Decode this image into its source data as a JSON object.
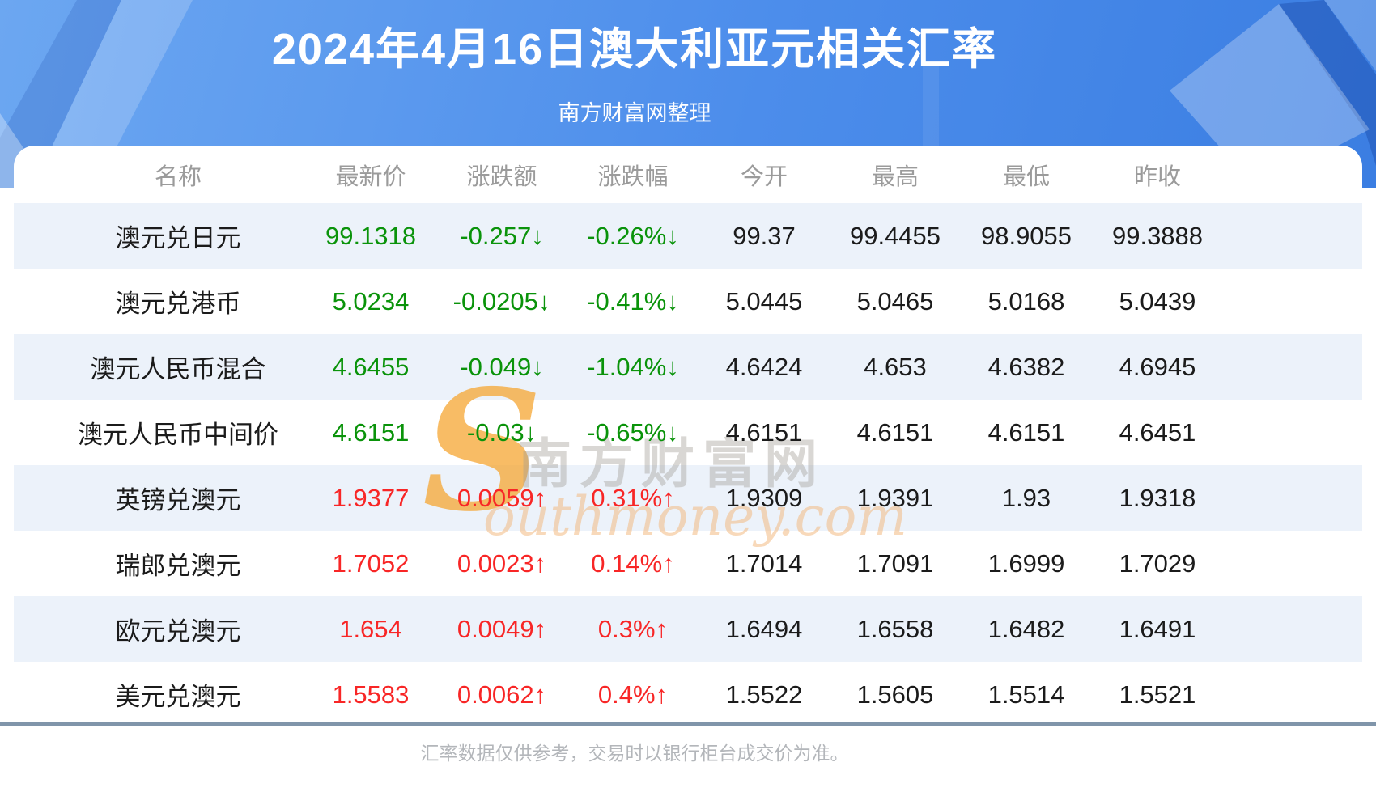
{
  "hero": {
    "title": "2024年4月16日澳大利亚元相关汇率",
    "subtitle": "南方财富网整理"
  },
  "watermark": {
    "initial": "S",
    "script": "outhmoney.com",
    "cn": "南方财富网"
  },
  "footer": {
    "note": "汇率数据仅供参考，交易时以银行柜台成交价为准。"
  },
  "colors": {
    "up_red": "#f82626",
    "down_green": "#0a930a",
    "stripe_blue": "#ecf2fa",
    "hero_blue": "#4c8deb",
    "divider_gray_blue": "#8095aa",
    "header_text_gray": "#9b9b9b"
  },
  "chart_data": {
    "type": "table",
    "title": "2024年4月16日澳大利亚元相关汇率",
    "columns": [
      "名称",
      "最新价",
      "涨跌额",
      "涨跌幅",
      "今开",
      "最高",
      "最低",
      "昨收"
    ],
    "rows": [
      {
        "trend": "down",
        "cells": [
          "澳元兑日元",
          "99.1318",
          "-0.257↓",
          "-0.26%↓",
          "99.37",
          "99.4455",
          "98.9055",
          "99.3888"
        ]
      },
      {
        "trend": "down",
        "cells": [
          "澳元兑港币",
          "5.0234",
          "-0.0205↓",
          "-0.41%↓",
          "5.0445",
          "5.0465",
          "5.0168",
          "5.0439"
        ]
      },
      {
        "trend": "down",
        "cells": [
          "澳元人民币混合",
          "4.6455",
          "-0.049↓",
          "-1.04%↓",
          "4.6424",
          "4.653",
          "4.6382",
          "4.6945"
        ]
      },
      {
        "trend": "down",
        "cells": [
          "澳元人民币中间价",
          "4.6151",
          "-0.03↓",
          "-0.65%↓",
          "4.6151",
          "4.6151",
          "4.6151",
          "4.6451"
        ]
      },
      {
        "trend": "up",
        "cells": [
          "英镑兑澳元",
          "1.9377",
          "0.0059↑",
          "0.31%↑",
          "1.9309",
          "1.9391",
          "1.93",
          "1.9318"
        ]
      },
      {
        "trend": "up",
        "cells": [
          "瑞郎兑澳元",
          "1.7052",
          "0.0023↑",
          "0.14%↑",
          "1.7014",
          "1.7091",
          "1.6999",
          "1.7029"
        ]
      },
      {
        "trend": "up",
        "cells": [
          "欧元兑澳元",
          "1.654",
          "0.0049↑",
          "0.3%↑",
          "1.6494",
          "1.6558",
          "1.6482",
          "1.6491"
        ]
      },
      {
        "trend": "up",
        "cells": [
          "美元兑澳元",
          "1.5583",
          "0.0062↑",
          "0.4%↑",
          "1.5522",
          "1.5605",
          "1.5514",
          "1.5521"
        ]
      }
    ]
  }
}
